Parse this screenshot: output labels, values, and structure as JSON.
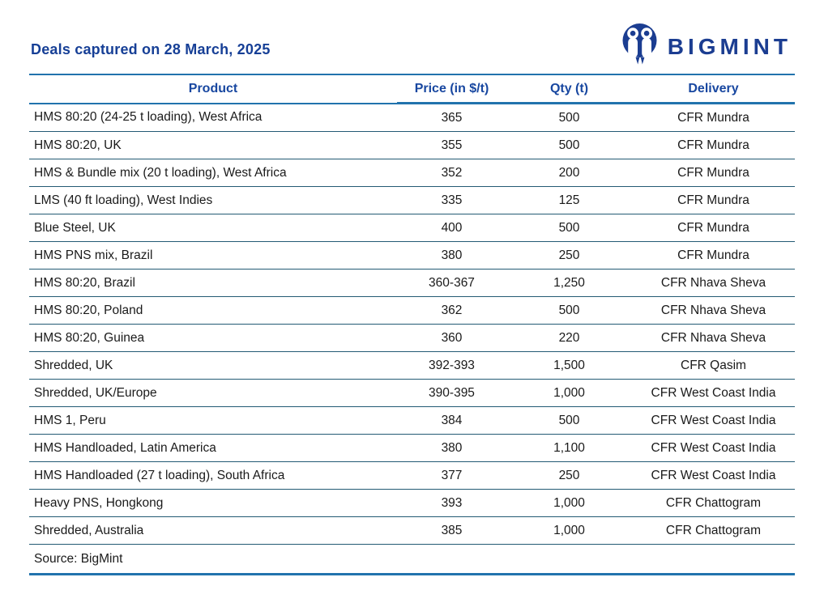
{
  "page": {
    "title": "Deals captured on 28 March, 2025"
  },
  "brand": {
    "name": "BIGMINT",
    "color": "#1B3D91"
  },
  "colors": {
    "title_navy": "#163F96",
    "header_blue": "#1847A0",
    "line_blue": "#2173AD",
    "row_separator": "#235A74",
    "body_text": "#1A1A1A"
  },
  "table": {
    "columns": [
      "Product",
      "Price (in $/t)",
      "Qty (t)",
      "Delivery"
    ],
    "rows": [
      [
        "HMS 80:20 (24-25 t loading), West Africa",
        "365",
        "500",
        "CFR Mundra"
      ],
      [
        "HMS 80:20, UK",
        "355",
        "500",
        "CFR Mundra"
      ],
      [
        "HMS & Bundle mix (20 t loading), West Africa",
        "352",
        "200",
        "CFR Mundra"
      ],
      [
        "LMS (40 ft loading), West Indies",
        "335",
        "125",
        "CFR Mundra"
      ],
      [
        "Blue Steel, UK",
        "400",
        "500",
        "CFR Mundra"
      ],
      [
        "HMS PNS mix, Brazil",
        "380",
        "250",
        "CFR Mundra"
      ],
      [
        "HMS 80:20, Brazil",
        "360-367",
        "1,250",
        "CFR Nhava Sheva"
      ],
      [
        "HMS 80:20, Poland",
        "362",
        "500",
        "CFR Nhava Sheva"
      ],
      [
        "HMS 80:20, Guinea",
        "360",
        "220",
        "CFR Nhava Sheva"
      ],
      [
        "Shredded, UK",
        "392-393",
        "1,500",
        "CFR Qasim"
      ],
      [
        "Shredded, UK/Europe",
        "390-395",
        "1,000",
        "CFR West Coast India"
      ],
      [
        "HMS 1, Peru",
        "384",
        "500",
        "CFR West Coast India"
      ],
      [
        "HMS Handloaded, Latin America",
        "380",
        "1,100",
        "CFR West Coast India"
      ],
      [
        "HMS Handloaded (27 t loading), South Africa",
        "377",
        "250",
        "CFR West Coast India"
      ],
      [
        "Heavy PNS, Hongkong",
        "393",
        "1,000",
        "CFR Chattogram"
      ],
      [
        "Shredded, Australia",
        "385",
        "1,000",
        "CFR Chattogram"
      ]
    ],
    "source": "Source: BigMint"
  },
  "chart_data": {
    "type": "table",
    "title": "Deals captured on 28 March, 2025",
    "columns": [
      "Product",
      "Price (in $/t)",
      "Qty (t)",
      "Delivery"
    ],
    "rows": [
      {
        "product": "HMS 80:20 (24-25 t loading), West Africa",
        "price_usd_t": "365",
        "qty_t": 500,
        "delivery": "CFR Mundra"
      },
      {
        "product": "HMS 80:20, UK",
        "price_usd_t": "355",
        "qty_t": 500,
        "delivery": "CFR Mundra"
      },
      {
        "product": "HMS & Bundle mix (20 t loading), West Africa",
        "price_usd_t": "352",
        "qty_t": 200,
        "delivery": "CFR Mundra"
      },
      {
        "product": "LMS (40 ft loading), West Indies",
        "price_usd_t": "335",
        "qty_t": 125,
        "delivery": "CFR Mundra"
      },
      {
        "product": "Blue Steel, UK",
        "price_usd_t": "400",
        "qty_t": 500,
        "delivery": "CFR Mundra"
      },
      {
        "product": "HMS PNS mix, Brazil",
        "price_usd_t": "380",
        "qty_t": 250,
        "delivery": "CFR Mundra"
      },
      {
        "product": "HMS 80:20, Brazil",
        "price_usd_t": "360-367",
        "qty_t": 1250,
        "delivery": "CFR Nhava Sheva"
      },
      {
        "product": "HMS 80:20, Poland",
        "price_usd_t": "362",
        "qty_t": 500,
        "delivery": "CFR Nhava Sheva"
      },
      {
        "product": "HMS 80:20, Guinea",
        "price_usd_t": "360",
        "qty_t": 220,
        "delivery": "CFR Nhava Sheva"
      },
      {
        "product": "Shredded, UK",
        "price_usd_t": "392-393",
        "qty_t": 1500,
        "delivery": "CFR Qasim"
      },
      {
        "product": "Shredded, UK/Europe",
        "price_usd_t": "390-395",
        "qty_t": 1000,
        "delivery": "CFR West Coast India"
      },
      {
        "product": "HMS 1, Peru",
        "price_usd_t": "384",
        "qty_t": 500,
        "delivery": "CFR West Coast India"
      },
      {
        "product": "HMS Handloaded, Latin America",
        "price_usd_t": "380",
        "qty_t": 1100,
        "delivery": "CFR West Coast India"
      },
      {
        "product": "HMS Handloaded (27 t loading), South Africa",
        "price_usd_t": "377",
        "qty_t": 250,
        "delivery": "CFR West Coast India"
      },
      {
        "product": "Heavy PNS, Hongkong",
        "price_usd_t": "393",
        "qty_t": 1000,
        "delivery": "CFR Chattogram"
      },
      {
        "product": "Shredded, Australia",
        "price_usd_t": "385",
        "qty_t": 1000,
        "delivery": "CFR Chattogram"
      }
    ],
    "source": "Source: BigMint"
  }
}
